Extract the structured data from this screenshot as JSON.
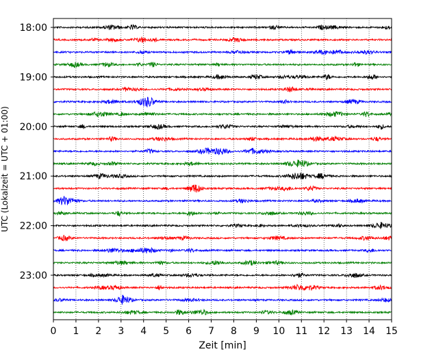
{
  "chart_data": {
    "type": "line",
    "title": "",
    "xlabel": "Zeit  [min]",
    "ylabel": "UTC (Lokalzeit = UTC + 01:00)",
    "xlim": [
      0,
      15
    ],
    "x_ticks": [
      "0",
      "1",
      "2",
      "3",
      "4",
      "5",
      "6",
      "7",
      "8",
      "9",
      "10",
      "11",
      "12",
      "13",
      "14",
      "15"
    ],
    "y_tick_labels": [
      "18:00",
      "19:00",
      "20:00",
      "21:00",
      "22:00",
      "23:00"
    ],
    "grid": "vertical dotted lines at each minute",
    "trace_interval_minutes": 15,
    "row_start_times": [
      "18:00",
      "18:15",
      "18:30",
      "18:45",
      "19:00",
      "19:15",
      "19:30",
      "19:45",
      "20:00",
      "20:15",
      "20:30",
      "20:45",
      "21:00",
      "21:15",
      "21:30",
      "21:45",
      "22:00",
      "22:15",
      "22:30",
      "22:45",
      "23:00",
      "23:15",
      "23:30",
      "23:45"
    ],
    "trace_colors": [
      "#000000",
      "#ff0000",
      "#0000ff",
      "#007f00"
    ],
    "legend": "none"
  }
}
